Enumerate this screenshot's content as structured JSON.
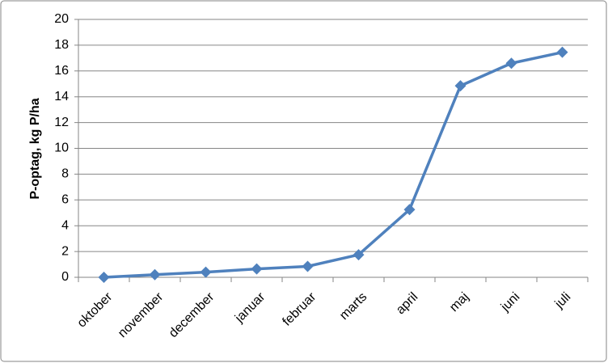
{
  "chart_data": {
    "type": "line",
    "y_label": "P-optag, kg P/ha",
    "categories": [
      "oktober",
      "november",
      "december",
      "januar",
      "februar",
      "marts",
      "april",
      "maj",
      "juni",
      "juli"
    ],
    "series": [
      {
        "name": "P-optag",
        "color": "#4f81bd",
        "values": [
          0,
          0.2,
          0.4,
          0.65,
          0.85,
          1.75,
          5.25,
          14.85,
          16.6,
          17.45
        ]
      }
    ],
    "ylim": [
      0,
      20
    ],
    "yticks": [
      0,
      2,
      4,
      6,
      8,
      10,
      12,
      14,
      16,
      18,
      20
    ],
    "grid": true
  }
}
